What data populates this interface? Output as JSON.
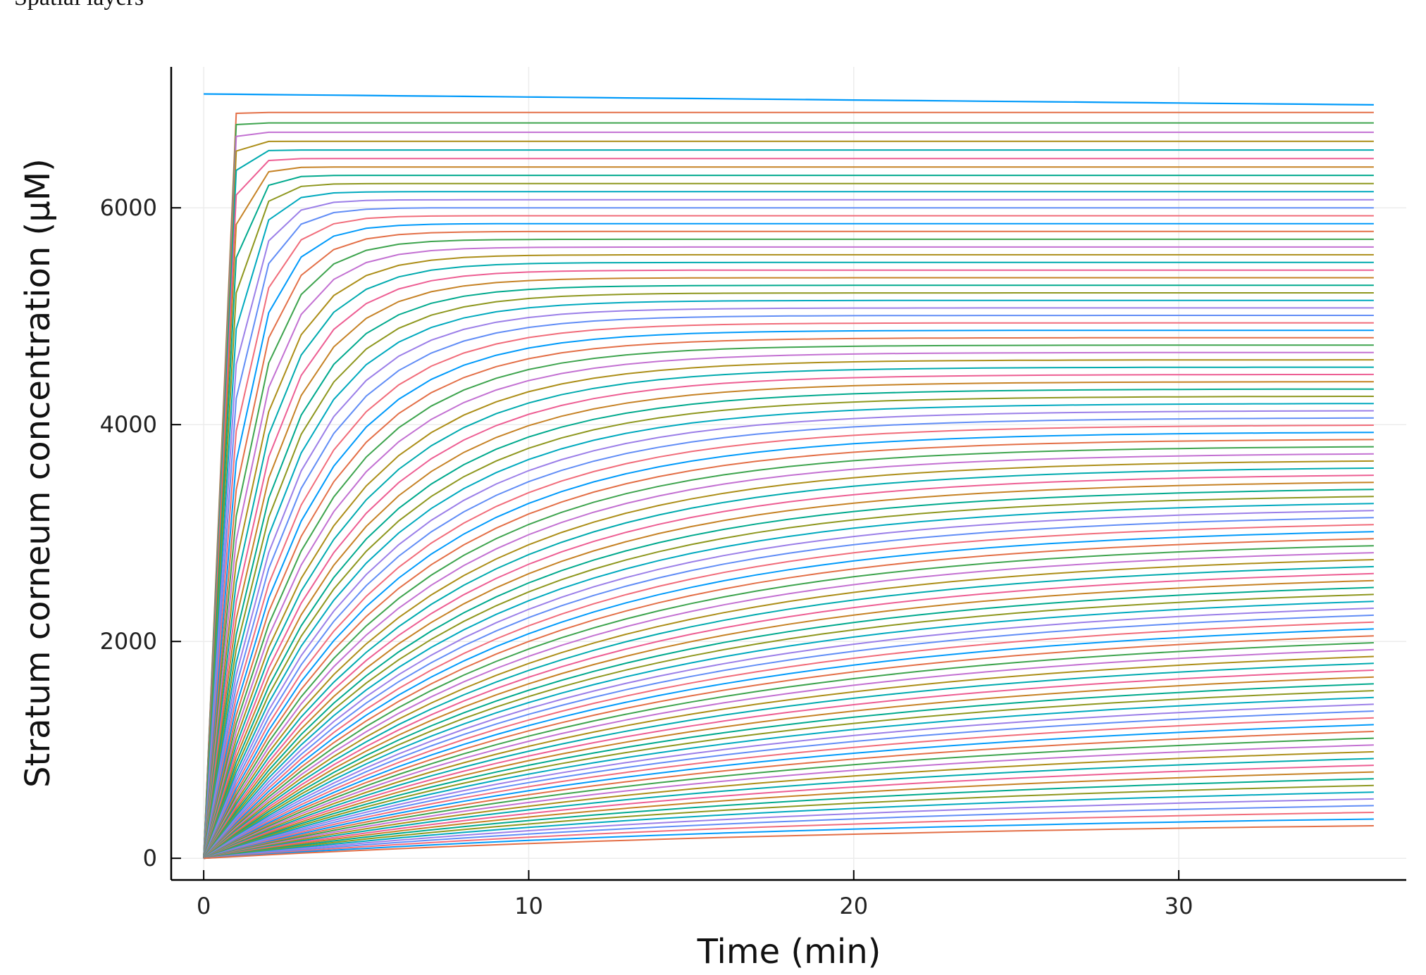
{
  "caption": "Spatial layers",
  "chart_data": {
    "type": "line",
    "title": "",
    "xlabel": "Time (min)",
    "ylabel": "Stratum corneum concentration (μM)",
    "xlim": [
      -1,
      37
    ],
    "ylim": [
      -200,
      7300
    ],
    "xticks": [
      0,
      10,
      20,
      30
    ],
    "yticks": [
      0,
      2000,
      4000,
      6000
    ],
    "grid": true,
    "legend": "none",
    "x_end": 36,
    "series_count": 100,
    "top_series": {
      "start": 7050,
      "end": 6950
    },
    "layer_endpoints": {
      "top_layer_end": 6880,
      "bottom_layer_end": 300
    },
    "palette": [
      "#009AFA",
      "#E36F47",
      "#3EA44E",
      "#C371D2",
      "#AC8E18",
      "#00AAAE",
      "#ED5E93",
      "#C68225",
      "#00A98D",
      "#8E971E",
      "#00A9BE",
      "#9B7FE8",
      "#618DF6",
      "#F16C7A"
    ]
  }
}
